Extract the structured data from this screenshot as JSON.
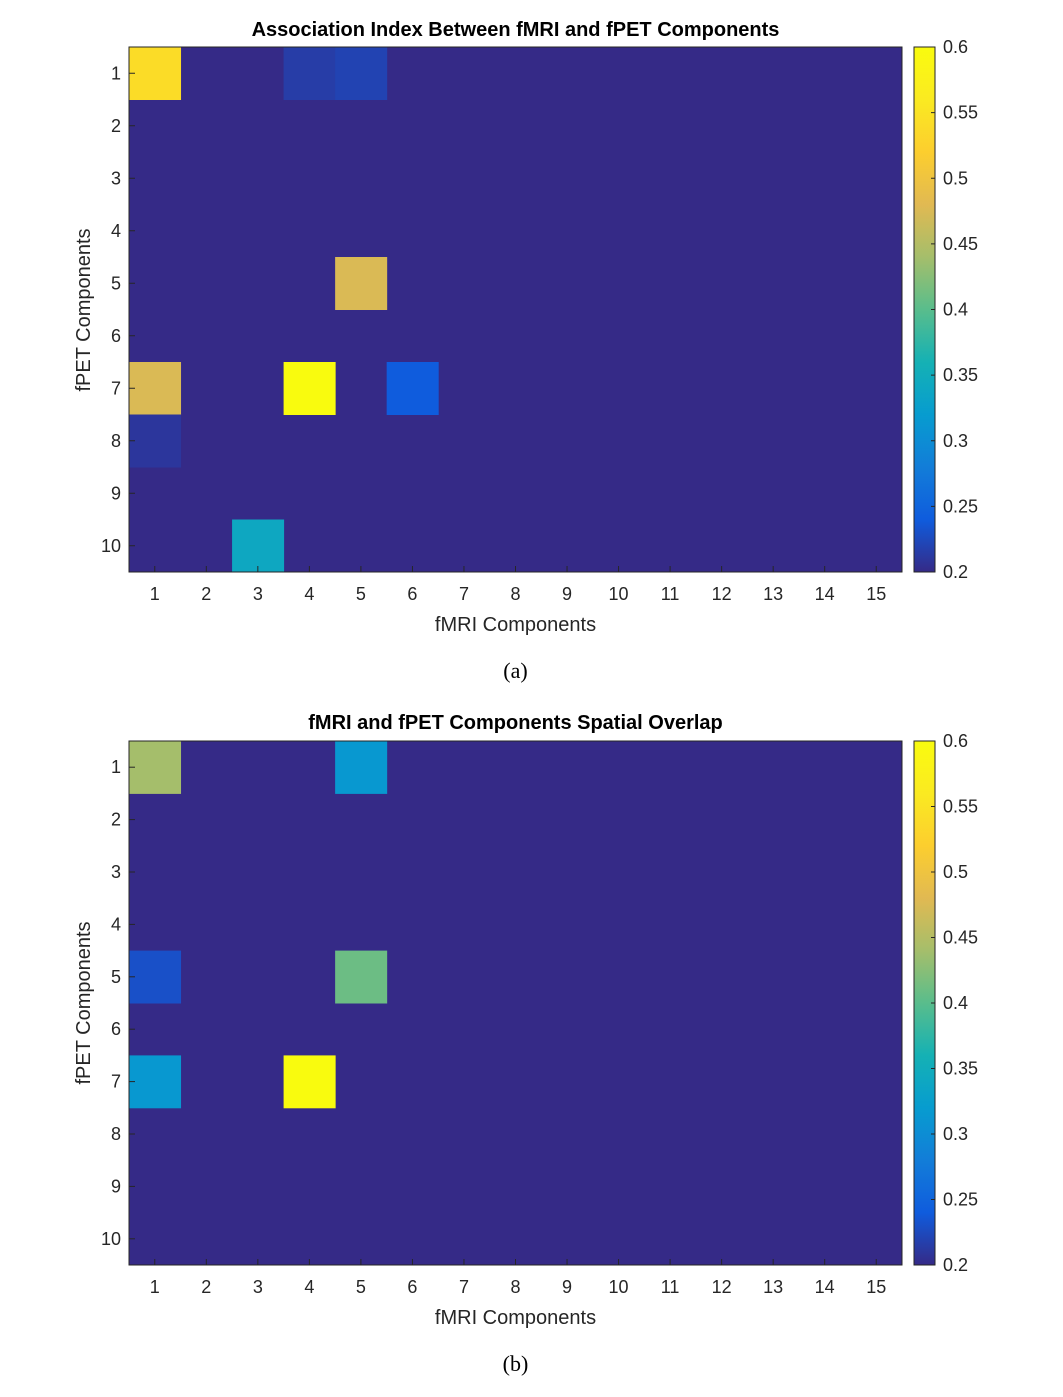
{
  "chart_data": [
    {
      "type": "heatmap",
      "title": "Association Index Between fMRI and fPET Components",
      "xlabel": "fMRI Components",
      "ylabel": "fPET Components",
      "caption": "(a)",
      "x_categories": [
        "1",
        "2",
        "3",
        "4",
        "5",
        "6",
        "7",
        "8",
        "9",
        "10",
        "11",
        "12",
        "13",
        "14",
        "15"
      ],
      "y_categories": [
        "1",
        "2",
        "3",
        "4",
        "5",
        "6",
        "7",
        "8",
        "9",
        "10"
      ],
      "clim": [
        0.2,
        0.6
      ],
      "colorbar_ticks": [
        "0.2",
        "0.25",
        "0.3",
        "0.35",
        "0.4",
        "0.45",
        "0.5",
        "0.55",
        "0.6"
      ],
      "baseline_value": 0.2,
      "cells": [
        {
          "row": 1,
          "col": 1,
          "value": 0.54
        },
        {
          "row": 1,
          "col": 4,
          "value": 0.215
        },
        {
          "row": 1,
          "col": 5,
          "value": 0.22
        },
        {
          "row": 5,
          "col": 5,
          "value": 0.475
        },
        {
          "row": 7,
          "col": 1,
          "value": 0.475
        },
        {
          "row": 7,
          "col": 4,
          "value": 0.6
        },
        {
          "row": 7,
          "col": 6,
          "value": 0.24
        },
        {
          "row": 8,
          "col": 1,
          "value": 0.21
        },
        {
          "row": 10,
          "col": 3,
          "value": 0.34
        }
      ]
    },
    {
      "type": "heatmap",
      "title": "fMRI and fPET Components Spatial Overlap",
      "xlabel": "fMRI Components",
      "ylabel": "fPET Components",
      "caption": "(b)",
      "x_categories": [
        "1",
        "2",
        "3",
        "4",
        "5",
        "6",
        "7",
        "8",
        "9",
        "10",
        "11",
        "12",
        "13",
        "14",
        "15"
      ],
      "y_categories": [
        "1",
        "2",
        "3",
        "4",
        "5",
        "6",
        "7",
        "8",
        "9",
        "10"
      ],
      "clim": [
        0.2,
        0.6
      ],
      "colorbar_ticks": [
        "0.2",
        "0.25",
        "0.3",
        "0.35",
        "0.4",
        "0.45",
        "0.5",
        "0.55",
        "0.6"
      ],
      "baseline_value": 0.2,
      "cells": [
        {
          "row": 1,
          "col": 1,
          "value": 0.44
        },
        {
          "row": 1,
          "col": 5,
          "value": 0.315
        },
        {
          "row": 5,
          "col": 1,
          "value": 0.23
        },
        {
          "row": 5,
          "col": 5,
          "value": 0.41
        },
        {
          "row": 7,
          "col": 1,
          "value": 0.315
        },
        {
          "row": 7,
          "col": 4,
          "value": 0.6
        }
      ]
    }
  ]
}
